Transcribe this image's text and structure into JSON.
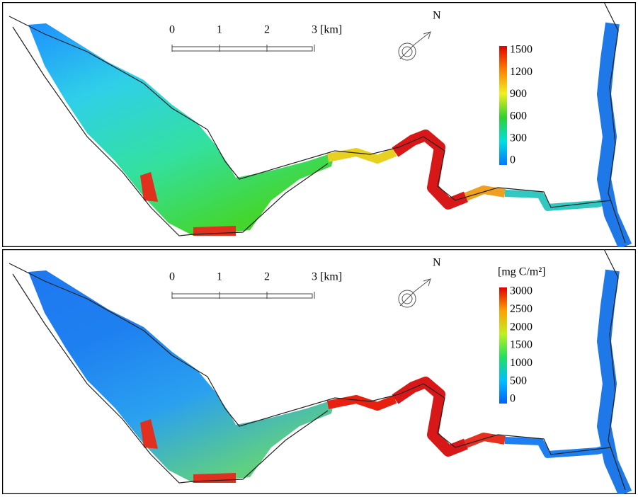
{
  "panels": [
    {
      "scale_bar": {
        "ticks": [
          "0",
          "1",
          "2",
          "3 [km]"
        ]
      },
      "north": "N",
      "colorbar": {
        "ticks": [
          1500,
          1200,
          900,
          600,
          300,
          0
        ]
      }
    },
    {
      "scale_bar": {
        "ticks": [
          "0",
          "1",
          "2",
          "3 [km]"
        ]
      },
      "north": "N",
      "colorbar": {
        "unit": "[mg C/m²]",
        "ticks": [
          3000,
          2500,
          2000,
          1500,
          1000,
          500,
          0
        ]
      }
    }
  ]
}
